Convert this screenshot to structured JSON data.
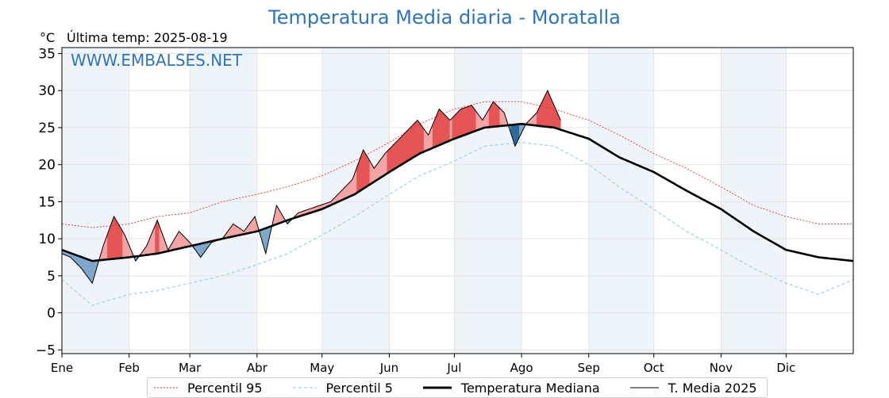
{
  "title": "Temperatura Media diaria - Moratalla",
  "unit_label": "°C",
  "last_temp": "Última temp: 2025-08-19",
  "watermark": "WWW.EMBALSES.NET",
  "colors": {
    "title": "#2e75b6",
    "p95": "#e8312d",
    "p5": "#9fd0e4",
    "median": "#000000",
    "media2025": "#000000",
    "above_fill": "#f4a4a4",
    "above_fill_strong": "#e55555",
    "below_fill": "#7fa7cb",
    "below_fill_strong": "#2f6a9e",
    "month_band": "#eef4fa"
  },
  "legend": [
    {
      "label": "Percentil 95",
      "style": "dotted-red"
    },
    {
      "label": "Percentil 5",
      "style": "dashed-lightblue"
    },
    {
      "label": "Temperatura Mediana",
      "style": "thick-black"
    },
    {
      "label": "T. Media 2025",
      "style": "thin-black"
    }
  ],
  "chart_data": {
    "type": "line",
    "title": "Temperatura Media diaria - Moratalla",
    "ylabel": "°C",
    "ylim": [
      -5.5,
      35.8
    ],
    "yticks": [
      -5,
      0,
      5,
      10,
      15,
      20,
      25,
      30,
      35
    ],
    "xlim_day_of_year": [
      1,
      366
    ],
    "grid": true,
    "legend_position": "bottom-center",
    "months": [
      "Ene",
      "Feb",
      "Mar",
      "Abr",
      "May",
      "Jun",
      "Jul",
      "Ago",
      "Sep",
      "Oct",
      "Nov",
      "Dic"
    ],
    "month_start_day": [
      1,
      32,
      60,
      91,
      121,
      152,
      182,
      213,
      244,
      274,
      305,
      335
    ],
    "series": [
      {
        "name": "Percentil 95",
        "day_of_year": [
          1,
          15,
          32,
          45,
          60,
          75,
          91,
          105,
          121,
          136,
          152,
          166,
          182,
          196,
          213,
          228,
          244,
          258,
          274,
          289,
          305,
          320,
          335,
          350,
          366
        ],
        "values": [
          12.0,
          11.5,
          12.0,
          13.0,
          13.5,
          15.0,
          16.0,
          17.0,
          18.5,
          20.5,
          23.0,
          25.5,
          27.5,
          28.5,
          28.5,
          27.5,
          26.0,
          24.0,
          21.5,
          19.5,
          17.0,
          14.5,
          13.0,
          12.0,
          12.0
        ]
      },
      {
        "name": "Percentil 5",
        "day_of_year": [
          1,
          15,
          32,
          45,
          60,
          75,
          91,
          105,
          121,
          136,
          152,
          166,
          182,
          196,
          213,
          228,
          244,
          258,
          274,
          289,
          305,
          320,
          335,
          350,
          366
        ],
        "values": [
          4.5,
          1.0,
          2.5,
          3.0,
          4.0,
          5.0,
          6.5,
          8.0,
          10.5,
          13.0,
          16.0,
          18.5,
          20.5,
          22.5,
          23.0,
          22.5,
          20.0,
          17.0,
          14.0,
          11.0,
          8.5,
          6.0,
          4.0,
          2.5,
          4.5
        ]
      },
      {
        "name": "Temperatura Mediana",
        "day_of_year": [
          1,
          15,
          32,
          45,
          60,
          75,
          91,
          105,
          121,
          136,
          152,
          166,
          182,
          196,
          213,
          228,
          244,
          258,
          274,
          289,
          305,
          320,
          335,
          350,
          366
        ],
        "values": [
          8.5,
          7.0,
          7.5,
          8.0,
          9.0,
          10.0,
          11.0,
          12.5,
          14.0,
          16.0,
          19.0,
          21.5,
          23.5,
          25.0,
          25.5,
          25.0,
          23.5,
          21.0,
          19.0,
          16.5,
          14.0,
          11.0,
          8.5,
          7.5,
          7.0
        ]
      },
      {
        "name": "T. Media 2025",
        "day_of_year": [
          1,
          5,
          10,
          15,
          20,
          25,
          30,
          35,
          40,
          45,
          50,
          55,
          60,
          65,
          70,
          75,
          80,
          85,
          90,
          95,
          100,
          105,
          110,
          115,
          120,
          125,
          130,
          135,
          140,
          145,
          150,
          155,
          160,
          165,
          170,
          175,
          180,
          185,
          190,
          195,
          200,
          205,
          210,
          215,
          220,
          225,
          231
        ],
        "values": [
          8.0,
          7.5,
          6.0,
          4.0,
          9.0,
          13.0,
          10.5,
          7.0,
          9.0,
          12.5,
          8.5,
          11.0,
          9.5,
          7.5,
          9.5,
          10.0,
          12.0,
          11.0,
          13.0,
          8.0,
          14.5,
          12.0,
          13.5,
          14.0,
          14.5,
          15.0,
          16.5,
          18.0,
          22.0,
          19.5,
          21.5,
          23.0,
          24.5,
          26.0,
          24.0,
          27.5,
          26.0,
          27.5,
          28.0,
          26.0,
          28.5,
          27.0,
          22.5,
          25.5,
          27.0,
          30.0,
          26.0
        ]
      }
    ]
  }
}
